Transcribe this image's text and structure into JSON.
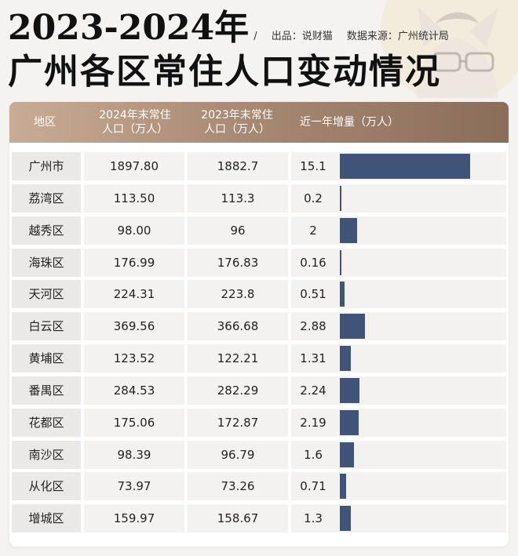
{
  "title": {
    "line1": "2023-2024年",
    "line2": "广州各区常住人口变动情况",
    "divider": "/",
    "producer": "出品：说财猫",
    "source": "数据来源：广州统计局"
  },
  "colors": {
    "bar": "#3f5478",
    "header_start": "#c9ac95",
    "header_end": "#8a6d5a"
  },
  "chart_data": {
    "type": "table",
    "columns": [
      "地区",
      "2024年末常住人口（万人）",
      "2023年末常住人口（万人）",
      "近一年增量（万人）"
    ],
    "column_lines": [
      [
        "地区"
      ],
      [
        "2024年末常住",
        "人口（万人）"
      ],
      [
        "2023年末常住",
        "人口（万人）"
      ],
      [
        "近一年增量（万人）"
      ]
    ],
    "rows": [
      {
        "region": "广州市",
        "pop2024": "1897.80",
        "pop2023": "1882.7",
        "increase": "15.1",
        "value": 15.1
      },
      {
        "region": "荔湾区",
        "pop2024": "113.50",
        "pop2023": "113.3",
        "increase": "0.2",
        "value": 0.2
      },
      {
        "region": "越秀区",
        "pop2024": "98.00",
        "pop2023": "96",
        "increase": "2",
        "value": 2
      },
      {
        "region": "海珠区",
        "pop2024": "176.99",
        "pop2023": "176.83",
        "increase": "0.16",
        "value": 0.16
      },
      {
        "region": "天河区",
        "pop2024": "224.31",
        "pop2023": "223.8",
        "increase": "0.51",
        "value": 0.51
      },
      {
        "region": "白云区",
        "pop2024": "369.56",
        "pop2023": "366.68",
        "increase": "2.88",
        "value": 2.88
      },
      {
        "region": "黄埔区",
        "pop2024": "123.52",
        "pop2023": "122.21",
        "increase": "1.31",
        "value": 1.31
      },
      {
        "region": "番禺区",
        "pop2024": "284.53",
        "pop2023": "282.29",
        "increase": "2.24",
        "value": 2.24
      },
      {
        "region": "花都区",
        "pop2024": "175.06",
        "pop2023": "172.87",
        "increase": "2.19",
        "value": 2.19
      },
      {
        "region": "南沙区",
        "pop2024": "98.39",
        "pop2023": "96.79",
        "increase": "1.6",
        "value": 1.6
      },
      {
        "region": "从化区",
        "pop2024": "73.97",
        "pop2023": "73.26",
        "increase": "0.71",
        "value": 0.71
      },
      {
        "region": "增城区",
        "pop2024": "159.97",
        "pop2023": "158.67",
        "increase": "1.3",
        "value": 1.3
      }
    ],
    "bar_max": 15.1
  }
}
